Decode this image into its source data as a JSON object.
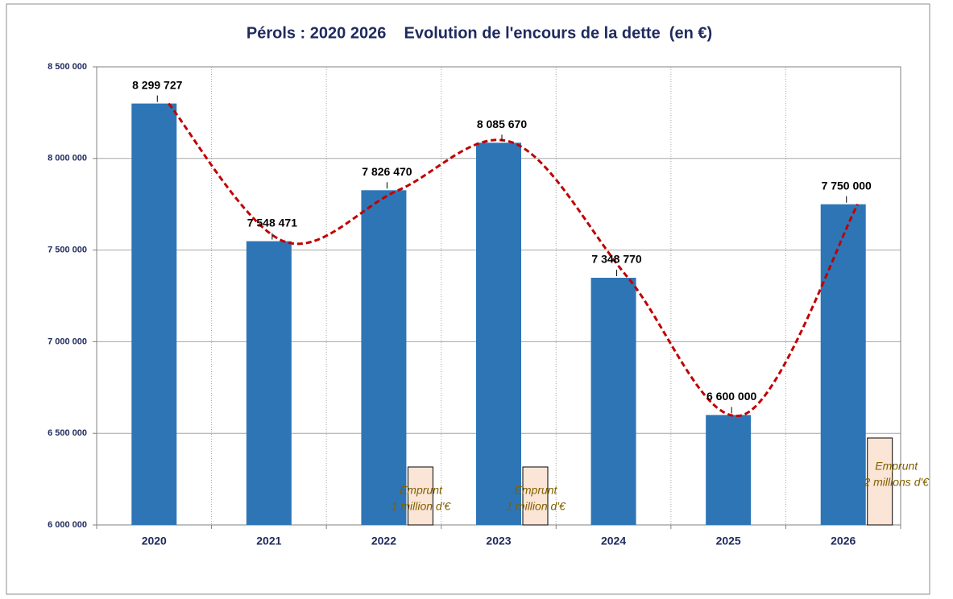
{
  "chart_data": {
    "type": "bar",
    "title": "Pérols : 2020 2026    Evolution de l'encours de la dette  (en €)",
    "categories": [
      "2020",
      "2021",
      "2022",
      "2023",
      "2024",
      "2025",
      "2026"
    ],
    "values": [
      8299727,
      7548471,
      7826470,
      8085670,
      7348770,
      6600000,
      7750000
    ],
    "value_labels": [
      "8 299 727",
      "7 548 471",
      "7 826 470",
      "8 085 670",
      "7 348 770",
      "6 600 000",
      "7 750 000"
    ],
    "color": "#2e75b6",
    "ylim": [
      6000000,
      8500000
    ],
    "yticks": [
      {
        "value": 6000000,
        "label": "6 000 000"
      },
      {
        "value": 6500000,
        "label": "6 500 000"
      },
      {
        "value": 7000000,
        "label": "7 000 000"
      },
      {
        "value": 7500000,
        "label": "7 500 000"
      },
      {
        "value": 8000000,
        "label": "8 000 000"
      },
      {
        "value": 8500000,
        "label": "8 500 000"
      }
    ],
    "grid": true,
    "trendline": {
      "color": "#c00000"
    },
    "annotations": [
      {
        "category": "2022",
        "lines": [
          "Emprunt",
          "1 million d'€"
        ]
      },
      {
        "category": "2023",
        "lines": [
          "Emprunt",
          "1 million d'€"
        ]
      },
      {
        "category": "2026",
        "lines": [
          "Emprunt",
          "2 millions d'€"
        ]
      }
    ]
  }
}
